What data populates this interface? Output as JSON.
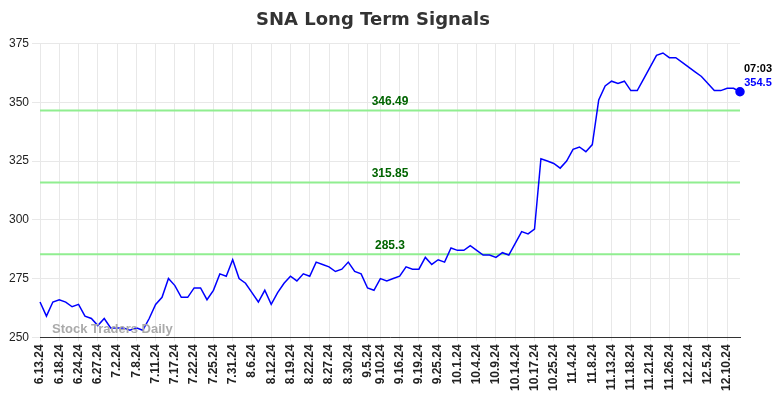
{
  "chart_data": {
    "type": "line",
    "title": "SNA Long Term Signals",
    "watermark": "Stock Traders Daily",
    "color": "#0000ff",
    "grid": true,
    "ylim": [
      250,
      375
    ],
    "yticks": [
      250,
      275,
      300,
      325,
      350,
      375
    ],
    "levels": [
      346.49,
      315.85,
      285.3
    ],
    "last_label": {
      "time": "07:03",
      "value": 354.5
    },
    "categories": [
      "6.13.24",
      null,
      null,
      "6.18.24",
      null,
      null,
      "6.24.24",
      null,
      null,
      "6.27.24",
      null,
      null,
      "7.2.24",
      null,
      null,
      "7.8.24",
      null,
      null,
      "7.11.24",
      null,
      null,
      "7.17.24",
      null,
      null,
      "7.22.24",
      null,
      null,
      "7.25.24",
      null,
      null,
      "7.31.24",
      null,
      null,
      "8.6.24",
      null,
      null,
      "8.12.24",
      null,
      null,
      "8.19.24",
      null,
      null,
      "8.22.24",
      null,
      null,
      "8.27.24",
      null,
      null,
      "8.30.24",
      null,
      null,
      "9.5.24",
      null,
      "9.10.24",
      null,
      null,
      "9.16.24",
      null,
      null,
      "9.19.24",
      null,
      null,
      "9.25.24",
      null,
      null,
      "10.1.24",
      null,
      null,
      "10.4.24",
      null,
      null,
      "10.9.24",
      null,
      null,
      "10.14.24",
      null,
      null,
      "10.17.24",
      null,
      null,
      "10.25.24",
      null,
      null,
      "11.4.24",
      null,
      null,
      "11.8.24",
      null,
      null,
      "11.13.24",
      null,
      null,
      "11.18.24",
      null,
      null,
      "11.21.24",
      null,
      null,
      "11.26.24",
      null,
      null,
      "12.2.24",
      null,
      null,
      "12.5.24",
      null,
      null,
      "12.10.24",
      null,
      null
    ],
    "values": [
      265,
      259,
      265,
      266,
      265,
      263,
      264,
      259,
      258,
      255,
      258,
      254,
      254,
      254,
      253,
      254,
      253,
      258,
      264,
      267,
      275,
      272,
      267,
      267,
      271,
      271,
      266,
      270,
      277,
      276,
      283,
      275,
      273,
      269,
      265,
      270,
      264,
      269,
      273,
      276,
      274,
      277,
      276,
      282,
      281,
      280,
      278,
      279,
      282,
      278,
      277,
      271,
      270,
      275,
      274,
      275,
      276,
      280,
      279,
      279,
      284,
      281,
      283,
      282,
      288,
      287,
      287,
      289,
      287,
      285,
      285,
      284,
      286,
      285,
      290,
      295,
      294,
      296,
      326,
      325,
      324,
      322,
      325,
      330,
      331,
      329,
      332,
      351,
      357,
      359,
      358,
      359,
      355,
      355,
      360,
      365,
      370,
      371,
      369,
      369,
      367,
      365,
      363,
      361,
      358,
      355,
      355,
      356,
      356,
      354.5
    ]
  }
}
